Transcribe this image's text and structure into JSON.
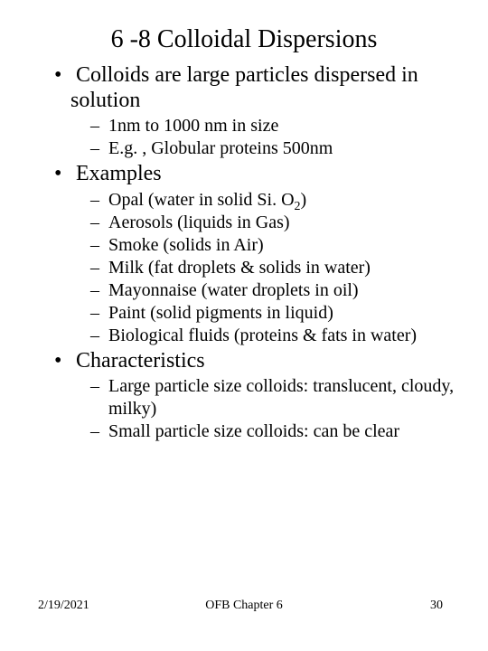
{
  "title": "6 -8 Colloidal Dispersions",
  "bullets": {
    "b1": {
      "text": "Colloids are large particles dispersed in solution",
      "sub": {
        "s1": "1nm to 1000 nm in size",
        "s2": "E.g. , Globular proteins 500nm "
      }
    },
    "b2": {
      "text": "Examples",
      "sub": {
        "s1a": "Opal (water in solid Si. O",
        "s1b": "2",
        "s1c": ")",
        "s2": "Aerosols (liquids in Gas)",
        "s3": "Smoke (solids in Air)",
        "s4": "Milk (fat droplets & solids in water)",
        "s5": "Mayonnaise (water droplets in oil)",
        "s6": "Paint (solid pigments in liquid)",
        "s7": "Biological fluids (proteins & fats in water)"
      }
    },
    "b3": {
      "text": "Characteristics",
      "sub": {
        "s1": "Large particle size colloids: translucent, cloudy, milky)",
        "s2": "Small particle size colloids: can be clear"
      }
    }
  },
  "footer": {
    "date": "2/19/2021",
    "center": "OFB Chapter 6",
    "page": "30"
  },
  "style": {
    "background_color": "#ffffff",
    "text_color": "#000000",
    "title_fontsize": 28,
    "l1_fontsize": 24,
    "l2_fontsize": 20,
    "footer_fontsize": 14,
    "font_family": "Times New Roman"
  }
}
